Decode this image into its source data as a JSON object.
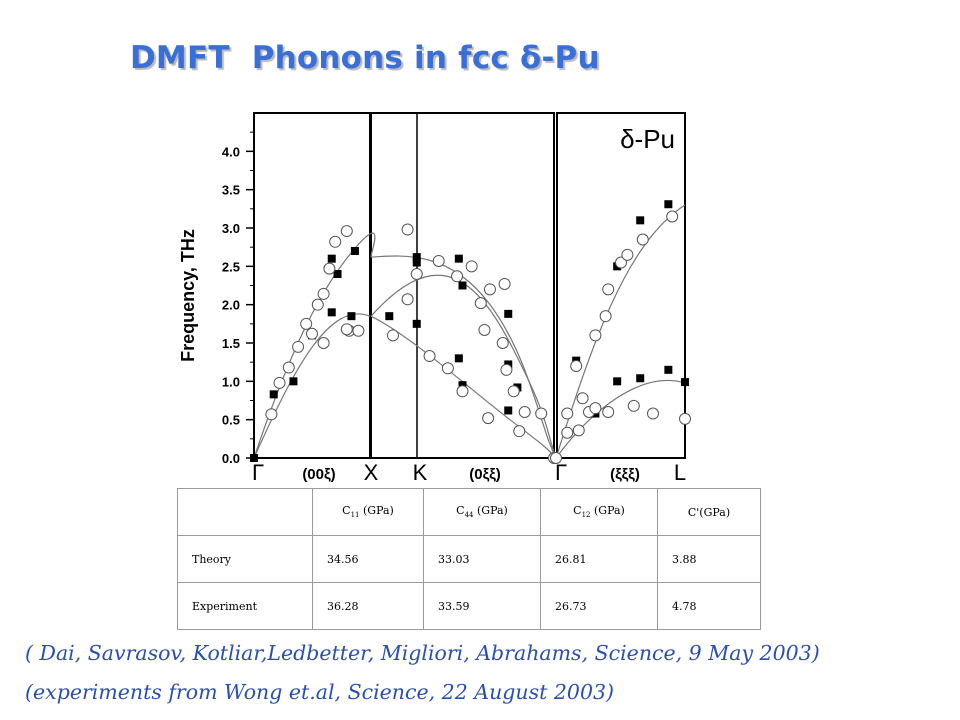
{
  "title": "DMFT  Phonons in fcc δ-Pu",
  "chart_data": {
    "type": "scatter",
    "ylabel": "Frequency, THz",
    "ylim": [
      0,
      4.5
    ],
    "yticks": [
      "0.0",
      "0.5",
      "1.0",
      "1.5",
      "2.0",
      "2.5",
      "3.0",
      "3.5",
      "4.0"
    ],
    "grid": false,
    "annotation": "δ-Pu",
    "panels": [
      {
        "xlim": [
          0,
          1
        ]
      },
      {
        "xlim": [
          0,
          1
        ]
      },
      {
        "xlim": [
          0,
          1
        ]
      }
    ],
    "point_labels": [
      "Γ",
      "X",
      "K",
      "Γ",
      "L"
    ],
    "direction_labels": [
      "(00ξ)",
      "(0ξξ)",
      "(ξξξ)"
    ],
    "series": [
      {
        "kind": "theory",
        "marker": "filled-square",
        "color": "#000000",
        "points": [
          [
            0,
            0,
            0.0
          ],
          [
            0,
            0.17,
            0.83
          ],
          [
            0,
            0.34,
            1.0
          ],
          [
            0,
            0.5,
            1.6
          ],
          [
            0,
            0.67,
            1.9
          ],
          [
            0,
            0.84,
            1.85
          ],
          [
            0,
            0.87,
            2.7
          ],
          [
            0,
            0.67,
            2.6
          ],
          [
            0,
            0.72,
            2.4
          ],
          [
            1,
            0.1,
            1.85
          ],
          [
            1,
            0.25,
            2.55
          ],
          [
            1,
            0.25,
            2.62
          ],
          [
            1,
            0.25,
            1.75
          ],
          [
            1,
            0.48,
            2.6
          ],
          [
            1,
            0.48,
            1.3
          ],
          [
            1,
            0.5,
            2.25
          ],
          [
            1,
            0.5,
            0.95
          ],
          [
            1,
            0.75,
            1.88
          ],
          [
            1,
            0.75,
            1.22
          ],
          [
            1,
            0.75,
            0.62
          ],
          [
            1,
            0.8,
            0.92
          ],
          [
            2,
            0.15,
            1.27
          ],
          [
            2,
            0.3,
            0.58
          ],
          [
            2,
            0.47,
            1.0
          ],
          [
            2,
            0.47,
            2.5
          ],
          [
            2,
            0.65,
            3.1
          ],
          [
            2,
            0.65,
            1.04
          ],
          [
            2,
            0.87,
            3.31
          ],
          [
            2,
            0.87,
            1.15
          ],
          [
            2,
            1.0,
            0.99
          ]
        ]
      },
      {
        "kind": "experiment",
        "marker": "open-circle",
        "color": "#000000",
        "points": [
          [
            0,
            0.15,
            0.57
          ],
          [
            0,
            0.22,
            0.98
          ],
          [
            0,
            0.3,
            1.18
          ],
          [
            0,
            0.38,
            1.45
          ],
          [
            0,
            0.45,
            1.75
          ],
          [
            0,
            0.5,
            1.62
          ],
          [
            0,
            0.55,
            2.0
          ],
          [
            0,
            0.6,
            2.14
          ],
          [
            0,
            0.65,
            2.47
          ],
          [
            0,
            0.7,
            2.82
          ],
          [
            0,
            0.8,
            2.96
          ],
          [
            0,
            0.82,
            1.66
          ],
          [
            0,
            0.6,
            1.5
          ],
          [
            0,
            0.9,
            1.66
          ],
          [
            0,
            0.8,
            1.68
          ],
          [
            1,
            0.12,
            1.6
          ],
          [
            1,
            0.2,
            2.98
          ],
          [
            1,
            0.2,
            2.07
          ],
          [
            1,
            0.25,
            2.4
          ],
          [
            1,
            0.32,
            1.33
          ],
          [
            1,
            0.37,
            2.57
          ],
          [
            1,
            0.42,
            1.17
          ],
          [
            1,
            0.47,
            2.37
          ],
          [
            1,
            0.5,
            0.87
          ],
          [
            1,
            0.55,
            2.5
          ],
          [
            1,
            0.6,
            2.02
          ],
          [
            1,
            0.62,
            1.67
          ],
          [
            1,
            0.64,
            0.52
          ],
          [
            1,
            0.65,
            2.2
          ],
          [
            1,
            0.72,
            1.5
          ],
          [
            1,
            0.73,
            2.27
          ],
          [
            1,
            0.74,
            1.15
          ],
          [
            1,
            0.78,
            0.87
          ],
          [
            1,
            0.81,
            0.35
          ],
          [
            1,
            0.84,
            0.6
          ],
          [
            1,
            0.93,
            0.58
          ],
          [
            1,
            1.0,
            0.0
          ]
        ]
      },
      {
        "kind": "experiment",
        "marker": "open-circle",
        "color": "#000000",
        "points": [
          [
            2,
            0.08,
            0.58
          ],
          [
            2,
            0.08,
            0.33
          ],
          [
            2,
            0.15,
            1.2
          ],
          [
            2,
            0.17,
            0.36
          ],
          [
            2,
            0.2,
            0.78
          ],
          [
            2,
            0.25,
            0.6
          ],
          [
            2,
            0.3,
            0.65
          ],
          [
            2,
            0.3,
            1.6
          ],
          [
            2,
            0.38,
            1.85
          ],
          [
            2,
            0.4,
            0.6
          ],
          [
            2,
            0.4,
            2.2
          ],
          [
            2,
            0.5,
            2.55
          ],
          [
            2,
            0.55,
            2.65
          ],
          [
            2,
            0.6,
            0.68
          ],
          [
            2,
            0.67,
            2.85
          ],
          [
            2,
            0.75,
            0.58
          ],
          [
            2,
            0.9,
            3.15
          ],
          [
            2,
            1.0,
            0.51
          ]
        ]
      }
    ]
  },
  "table": {
    "headers": [
      "C11 (GPa)",
      "C44 (GPa)",
      "C12 (GPa)",
      "C'(GPa)"
    ],
    "header_parts": [
      {
        "pre": "C",
        "sub": "11",
        "post": " (GPa)"
      },
      {
        "pre": "C",
        "sub": "44",
        "post": " (GPa)"
      },
      {
        "pre": "C",
        "sub": "12",
        "post": " (GPa)"
      },
      {
        "pre": "C'(GPa)",
        "sub": "",
        "post": ""
      }
    ],
    "rows": [
      {
        "label": "Theory",
        "values": [
          "34.56",
          "33.03",
          "26.81",
          "3.88"
        ]
      },
      {
        "label": "Experiment",
        "values": [
          "36.28",
          "33.59",
          "26.73",
          "4.78"
        ]
      }
    ]
  },
  "citations": [
    "( Dai, Savrasov, Kotliar,Ledbetter, Migliori, Abrahams, Science, 9 May 2003)",
    "(experiments from Wong et.al, Science, 22 August 2003)"
  ]
}
